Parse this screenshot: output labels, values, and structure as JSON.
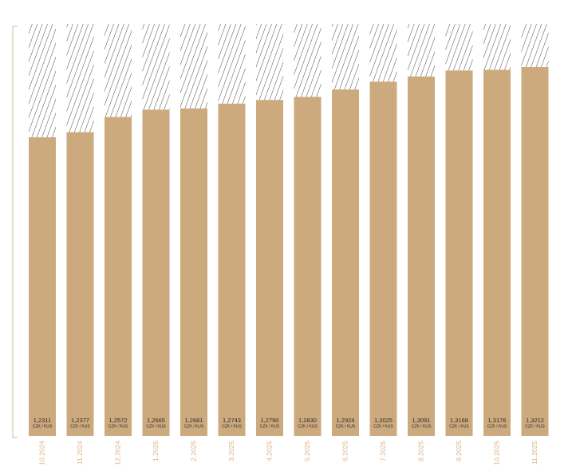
{
  "chart_data": {
    "type": "bar",
    "categories": [
      "10.2024",
      "11.2024",
      "12.2024",
      "1.2025",
      "2.2025",
      "3.2025",
      "4.2025",
      "5.2025",
      "6.2025",
      "7.2025",
      "8.2025",
      "9.2025",
      "10.2025",
      "11.2025"
    ],
    "series": [
      {
        "values": [
          1.2311,
          1.2377,
          1.2572,
          1.2665,
          1.2681,
          1.2743,
          1.279,
          1.283,
          1.2924,
          1.3025,
          1.3091,
          1.3168,
          1.3176,
          1.3212
        ]
      }
    ],
    "value_labels": [
      "1,2311",
      "1,2377",
      "1,2572",
      "1,2665",
      "1,2681",
      "1,2743",
      "1,2790",
      "1,2830",
      "1,2924",
      "1,3025",
      "1,3091",
      "1,3168",
      "1,3176",
      "1,3212"
    ],
    "unit_label": "CZK / KUS",
    "title": "",
    "xlabel": "",
    "ylabel": "",
    "y_axis_labels": "none",
    "background_pattern": "diagonal hatching",
    "grid": false,
    "legend": "none",
    "colors": {
      "bar": "#cdaa7d",
      "hatch": "#333333",
      "bracket": "#d8c4a8",
      "tick_label": "#d9b58c"
    }
  }
}
